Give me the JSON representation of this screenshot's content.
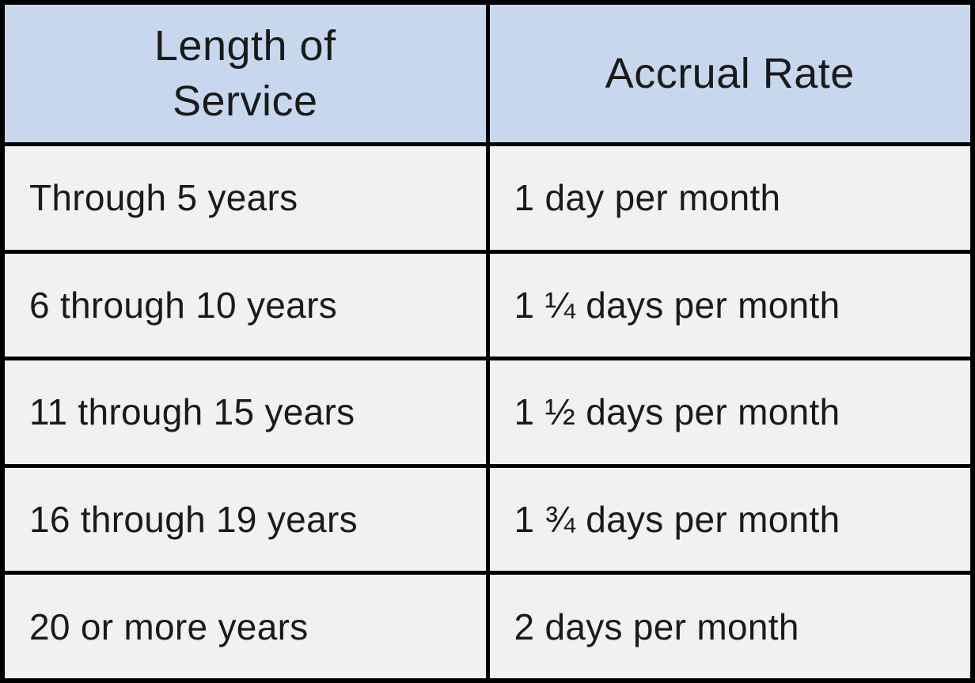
{
  "chart_data": {
    "type": "table",
    "title": "",
    "columns": [
      "Length of Service",
      "Accrual Rate"
    ],
    "rows": [
      [
        "Through 5 years",
        "1 day per month"
      ],
      [
        "6 through 10 years",
        "1 ¼ days per month"
      ],
      [
        "11 through 15 years",
        "1 ½ days per month"
      ],
      [
        "16 through 19 years",
        "1 ¾ days per month"
      ],
      [
        "20 or more years",
        "2 days per month"
      ]
    ]
  },
  "colors": {
    "header_bg": "#c7d8ee",
    "row_bg": "#f1f1f1",
    "border": "#000000",
    "text": "#1a1a1a"
  }
}
